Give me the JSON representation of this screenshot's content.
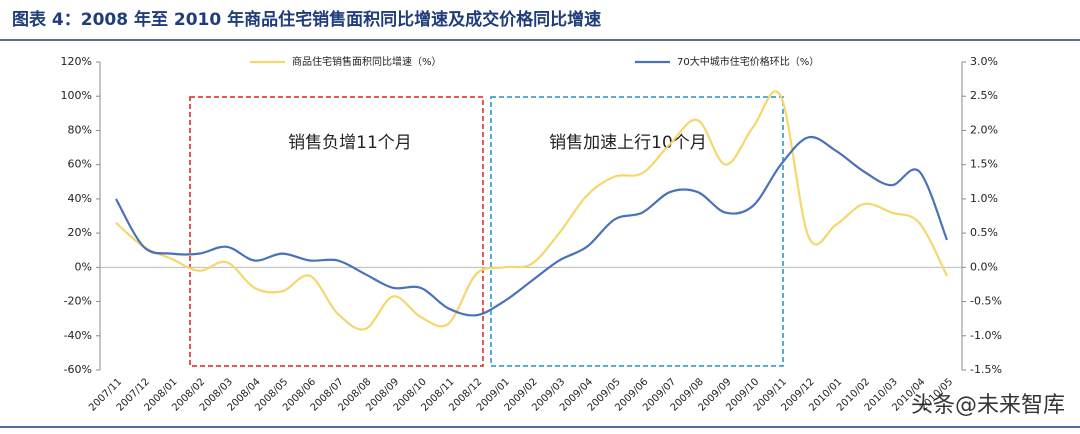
{
  "chart_data": {
    "type": "line",
    "title": "图表 4：2008 年至 2010 年商品住宅销售面积同比增速及成交价格同比增速",
    "categories": [
      "2007/11",
      "2007/12",
      "2008/01",
      "2008/02",
      "2008/03",
      "2008/04",
      "2008/05",
      "2008/06",
      "2008/07",
      "2008/08",
      "2008/09",
      "2008/10",
      "2008/11",
      "2008/12",
      "2009/01",
      "2009/02",
      "2009/03",
      "2009/04",
      "2009/05",
      "2009/06",
      "2009/07",
      "2009/08",
      "2009/09",
      "2009/10",
      "2009/11",
      "2009/12",
      "2010/01",
      "2010/02",
      "2010/03",
      "2010/04",
      "2010/05"
    ],
    "series": [
      {
        "name": "商品住宅销售面积同比增速（%）",
        "color": "#f5d76e",
        "values": [
          26,
          12,
          5,
          -2,
          3,
          -12,
          -14,
          -5,
          -27,
          -36,
          -17,
          -29,
          -33,
          -4,
          0,
          2,
          20,
          42,
          53,
          55,
          72,
          86,
          60,
          82,
          100,
          18,
          25,
          37,
          32,
          26,
          -5
        ]
      },
      {
        "name": "70大中城市住宅价格环比（%）",
        "color": "#4a72b8",
        "axis": "y2",
        "values": [
          1.0,
          0.3,
          0.2,
          0.2,
          0.3,
          0.1,
          0.2,
          0.1,
          0.1,
          -0.1,
          -0.3,
          -0.3,
          -0.6,
          -0.7,
          -0.5,
          -0.2,
          0.1,
          0.3,
          0.7,
          0.8,
          1.1,
          1.1,
          0.8,
          0.9,
          1.5,
          1.9,
          1.7,
          1.4,
          1.2,
          1.4,
          0.4
        ]
      }
    ],
    "ylim": [
      -60,
      120
    ],
    "yticks": [
      {
        "value": -60,
        "label": "-60%"
      },
      {
        "value": -40,
        "label": "-40%"
      },
      {
        "value": -20,
        "label": "-20%"
      },
      {
        "value": 0,
        "label": "0%"
      },
      {
        "value": 20,
        "label": "20%"
      },
      {
        "value": 40,
        "label": "40%"
      },
      {
        "value": 60,
        "label": "60%"
      },
      {
        "value": 80,
        "label": "80%"
      },
      {
        "value": 100,
        "label": "100%"
      },
      {
        "value": 120,
        "label": "120%"
      }
    ],
    "y2lim": [
      -1.5,
      3.0
    ],
    "y2ticks": [
      {
        "value": -1.5,
        "label": "-1.5%"
      },
      {
        "value": -1,
        "label": "-1.0%"
      },
      {
        "value": -0.5,
        "label": "-0.5%"
      },
      {
        "value": 0,
        "label": "0.0%"
      },
      {
        "value": 0.5,
        "label": "0.5%"
      },
      {
        "value": 1,
        "label": "1.0%"
      },
      {
        "value": 1.5,
        "label": "1.5%"
      },
      {
        "value": 2,
        "label": "2.0%"
      },
      {
        "value": 2.5,
        "label": "2.5%"
      },
      {
        "value": 3,
        "label": "3.0%"
      }
    ],
    "annotations": [
      "销售负增11个月",
      "销售加速上行10个月"
    ],
    "watermark": "头条@未来智库",
    "legend": "top"
  }
}
